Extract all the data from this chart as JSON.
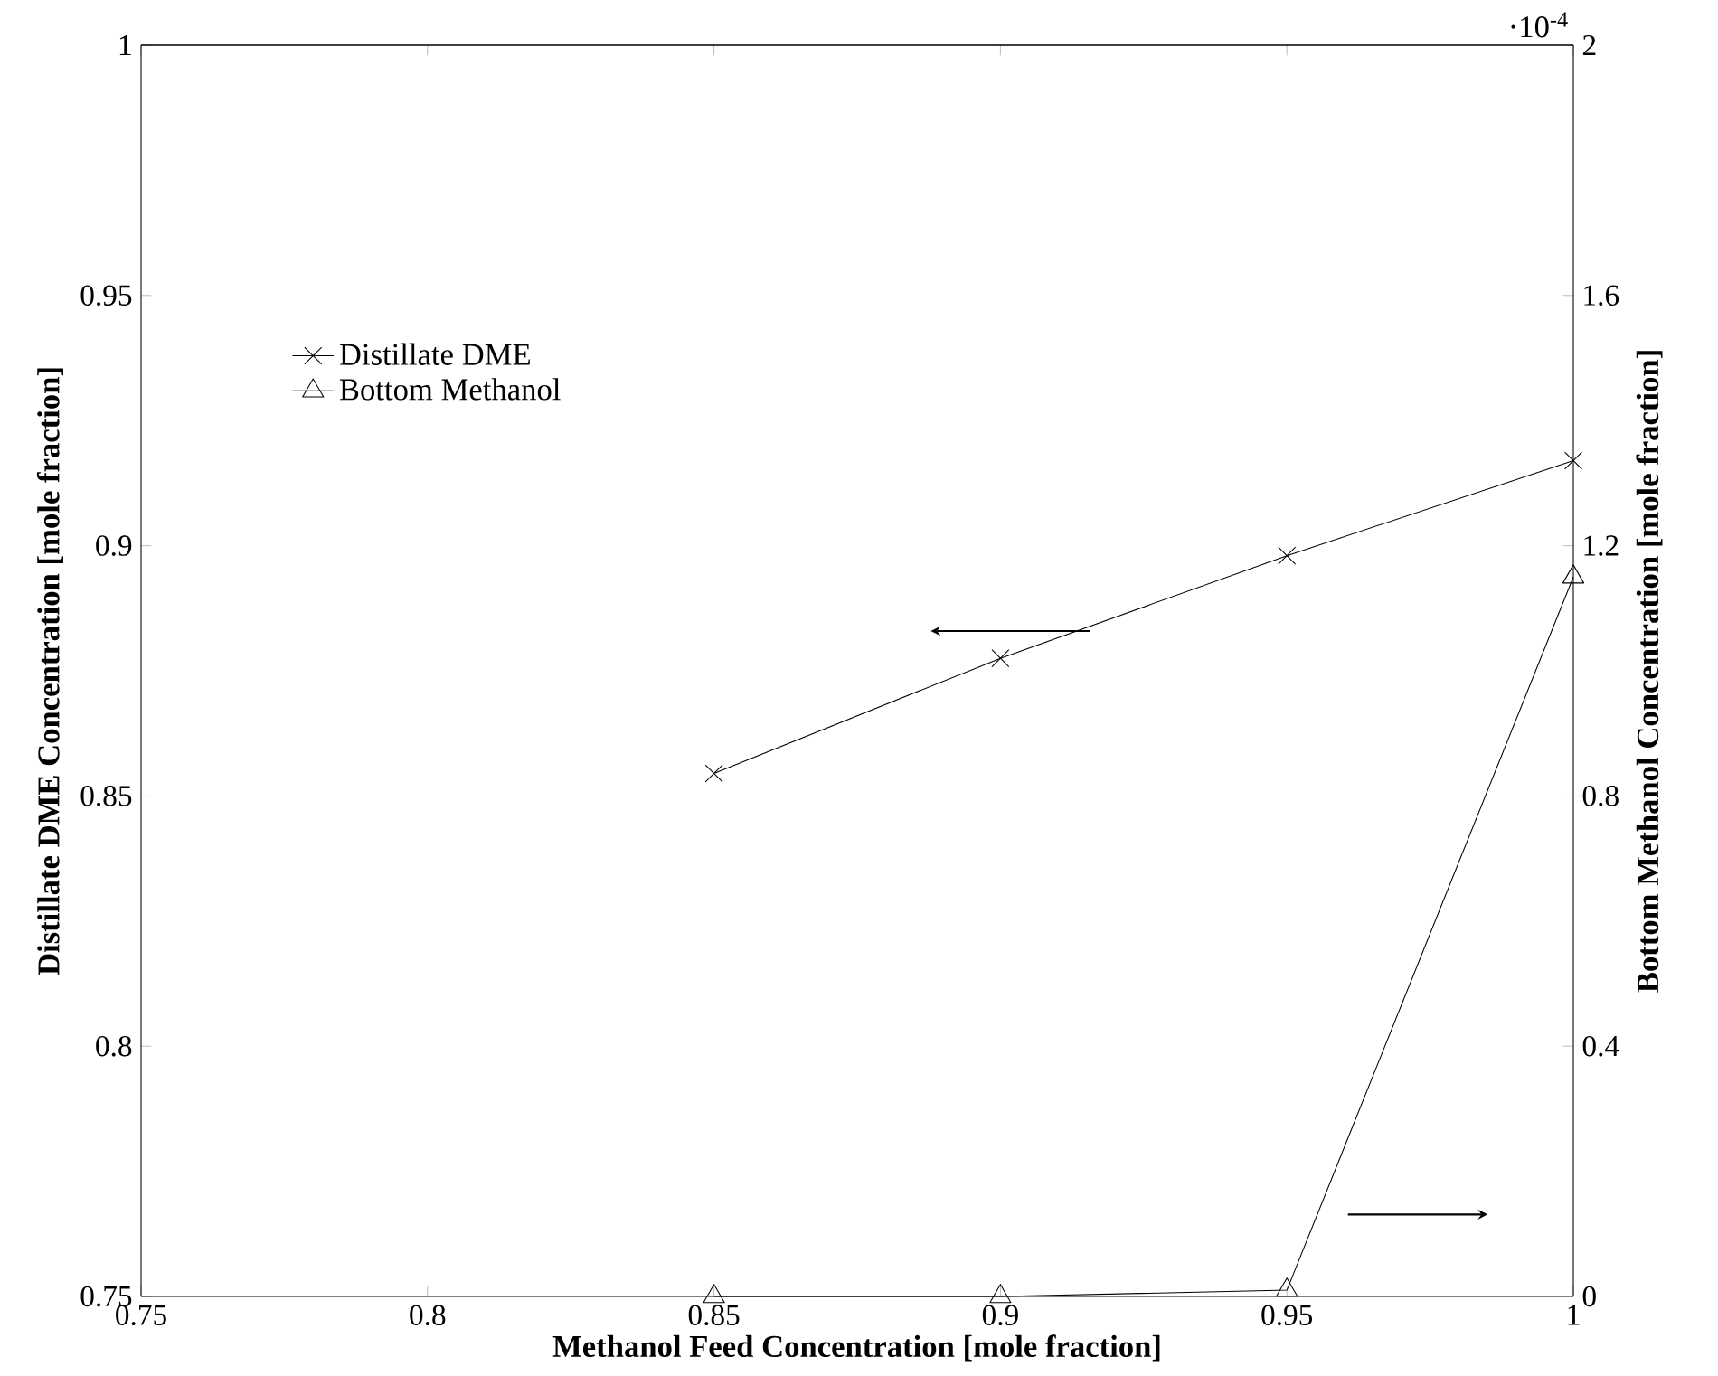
{
  "chart_data": {
    "type": "line",
    "x": [
      0.85,
      0.9,
      0.95,
      1.0
    ],
    "series": [
      {
        "name": "Distillate DME",
        "color": "#000000",
        "marker": "cross",
        "values": [
          0.8545,
          0.8775,
          0.898,
          0.917
        ]
      },
      {
        "name": "Bottom Methanol",
        "color": "#000000",
        "marker": "triangle",
        "axis": "y2",
        "values": [
          0.0,
          0.0,
          0.01,
          1.15
        ]
      }
    ],
    "xlabel": "Methanol Feed Concentration [mole fraction]",
    "ylabel": "Distillate DME Concentration [mole fraction]",
    "y2label": "Bottom Methanol Concentration [mole fraction]",
    "annotations": [
      "·10$^{-4}$"
    ],
    "xlim": [
      0.75,
      1.0
    ],
    "xticks": [
      0.75,
      0.8,
      0.85,
      0.9,
      0.95,
      1
    ],
    "ylim": [
      0.75,
      1.0
    ],
    "yticks": [
      0.75,
      0.8,
      0.85,
      0.9,
      0.95,
      1
    ],
    "y2lim": [
      0,
      2
    ],
    "y2ticks": [
      0,
      0.4,
      0.8,
      1.2,
      1.6,
      2
    ],
    "legend": "left",
    "grid": false,
    "line_style": "solid"
  }
}
